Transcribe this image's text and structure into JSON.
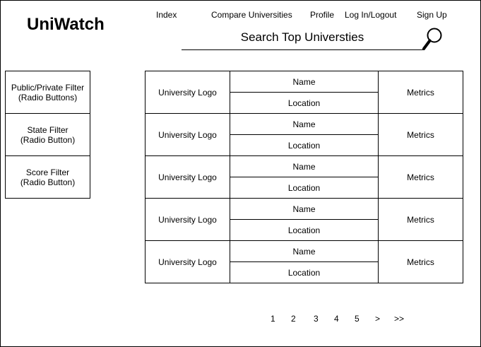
{
  "header": {
    "brand": "UniWatch",
    "nav": [
      "Index",
      "Compare Universities",
      "Profile",
      "Log In/Logout",
      "Sign Up"
    ]
  },
  "search": {
    "placeholder": "Search Top Universties",
    "icon": "magnifier"
  },
  "filters": [
    {
      "line1": "Public/Private Filter",
      "line2": "(Radio Buttons)"
    },
    {
      "line1": "State Filter",
      "line2": "(Radio Button)"
    },
    {
      "line1": "Score Filter",
      "line2": "(Radio Button)"
    }
  ],
  "results": [
    {
      "logo": "University Logo",
      "name": "Name",
      "location": "Location",
      "metrics": "Metrics"
    },
    {
      "logo": "University Logo",
      "name": "Name",
      "location": "Location",
      "metrics": "Metrics"
    },
    {
      "logo": "University Logo",
      "name": "Name",
      "location": "Location",
      "metrics": "Metrics"
    },
    {
      "logo": "University Logo",
      "name": "Name",
      "location": "Location",
      "metrics": "Metrics"
    },
    {
      "logo": "University Logo",
      "name": "Name",
      "location": "Location",
      "metrics": "Metrics"
    }
  ],
  "pagination": [
    "1",
    "2",
    "3",
    "4",
    "5",
    ">",
    ">>"
  ]
}
